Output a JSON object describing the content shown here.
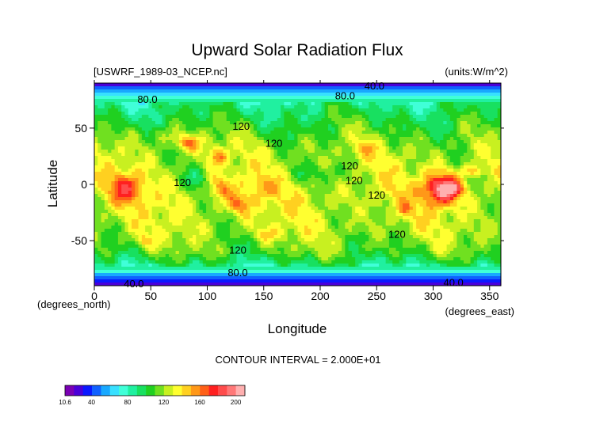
{
  "chart_data": {
    "type": "heatmap",
    "title": "Upward Solar Radiation Flux",
    "file_label": "[USWRF_1989-03_NCEP.nc]",
    "units_label": "(units:W/m^2)",
    "xlabel": "Longitude",
    "ylabel": "Latitude",
    "x_unit_label": "(degrees_east)",
    "y_unit_label": "(degrees_north)",
    "xlim": [
      0,
      360
    ],
    "ylim": [
      -90,
      90
    ],
    "x_ticks": [
      0,
      50,
      100,
      150,
      200,
      250,
      300,
      350
    ],
    "y_ticks": [
      -50,
      0,
      50
    ],
    "contour_interval_text": "CONTOUR INTERVAL = 2.000E+01",
    "contour_labels": [
      {
        "text": "40.0",
        "lon": 248,
        "lat": 88
      },
      {
        "text": "80.0",
        "lon": 47,
        "lat": 76
      },
      {
        "text": "80.0",
        "lon": 222,
        "lat": 79
      },
      {
        "text": "120",
        "lon": 130,
        "lat": 52
      },
      {
        "text": "120",
        "lon": 159,
        "lat": 37
      },
      {
        "text": "120",
        "lon": 226,
        "lat": 17
      },
      {
        "text": "120",
        "lon": 78,
        "lat": 2
      },
      {
        "text": "120",
        "lon": 230,
        "lat": 4
      },
      {
        "text": "120",
        "lon": 250,
        "lat": -9
      },
      {
        "text": "120",
        "lon": 268,
        "lat": -44
      },
      {
        "text": "120",
        "lon": 127,
        "lat": -58
      },
      {
        "text": "80.0",
        "lon": 127,
        "lat": -78
      },
      {
        "text": "40.0",
        "lon": 35,
        "lat": -88
      },
      {
        "text": "40.0",
        "lon": 318,
        "lat": -87
      }
    ],
    "colorbar": {
      "min_label": "10.6",
      "tick_labels": [
        "40",
        "80",
        "120",
        "160",
        "200"
      ],
      "tick_values": [
        40,
        80,
        120,
        160,
        200
      ],
      "vmin": 10.6,
      "vmax": 210,
      "colors": [
        "#7a00b4",
        "#4a00d8",
        "#0a18ff",
        "#1060ff",
        "#18a8ff",
        "#38e0ff",
        "#40ffd8",
        "#20f0a0",
        "#18e060",
        "#20d020",
        "#70e020",
        "#c8f020",
        "#ffff30",
        "#ffd020",
        "#ff9818",
        "#ff6018",
        "#ff2020",
        "#ff4c4c",
        "#ff7878",
        "#ffb0b0"
      ]
    },
    "field_model": {
      "base_profile": [
        [
          -90,
          20
        ],
        [
          -85,
          38
        ],
        [
          -80,
          60
        ],
        [
          -75,
          80
        ],
        [
          -70,
          95
        ],
        [
          -60,
          112
        ],
        [
          -50,
          118
        ],
        [
          -40,
          124
        ],
        [
          -30,
          126
        ],
        [
          -20,
          128
        ],
        [
          -10,
          130
        ],
        [
          0,
          128
        ],
        [
          10,
          126
        ],
        [
          20,
          124
        ],
        [
          30,
          122
        ],
        [
          40,
          116
        ],
        [
          50,
          108
        ],
        [
          60,
          100
        ],
        [
          70,
          92
        ],
        [
          75,
          82
        ],
        [
          80,
          70
        ],
        [
          85,
          48
        ],
        [
          90,
          22
        ]
      ],
      "features": [
        {
          "lon": 308,
          "lat": -4,
          "rlon": 16,
          "rlat": 14,
          "amp": 78
        },
        {
          "lon": 318,
          "lat": -4,
          "rlon": 7,
          "rlat": 5,
          "amp": 30
        },
        {
          "lon": 28,
          "lat": -3,
          "rlon": 14,
          "rlat": 13,
          "amp": 42
        },
        {
          "lon": 82,
          "lat": 37,
          "rlon": 12,
          "rlat": 7,
          "amp": 42
        },
        {
          "lon": 110,
          "lat": 25,
          "rlon": 9,
          "rlat": 7,
          "amp": 30
        },
        {
          "lon": 112,
          "lat": -4,
          "rlon": 10,
          "rlat": 10,
          "amp": 28
        },
        {
          "lon": 128,
          "lat": -18,
          "rlon": 10,
          "rlat": 9,
          "amp": 32
        },
        {
          "lon": 335,
          "lat": 12,
          "rlon": 10,
          "rlat": 5,
          "amp": 30
        },
        {
          "lon": 148,
          "lat": -2,
          "rlon": 12,
          "rlat": 10,
          "amp": 18
        },
        {
          "lon": 275,
          "lat": -22,
          "rlon": 6,
          "rlat": 6,
          "amp": 22
        },
        {
          "lon": 90,
          "lat": 5,
          "rlon": 10,
          "rlat": 10,
          "amp": -22
        },
        {
          "lon": 200,
          "lat": 10,
          "rlon": 30,
          "rlat": 8,
          "amp": -14
        },
        {
          "lon": 60,
          "lat": 45,
          "rlon": 12,
          "rlat": 8,
          "amp": 18
        },
        {
          "lon": 240,
          "lat": 32,
          "rlon": 8,
          "rlat": 6,
          "amp": 20
        },
        {
          "lon": 155,
          "lat": -45,
          "rlon": 12,
          "rlat": 6,
          "amp": 20
        },
        {
          "lon": 45,
          "lat": -50,
          "rlon": 8,
          "rlat": 5,
          "amp": 22
        }
      ]
    }
  }
}
